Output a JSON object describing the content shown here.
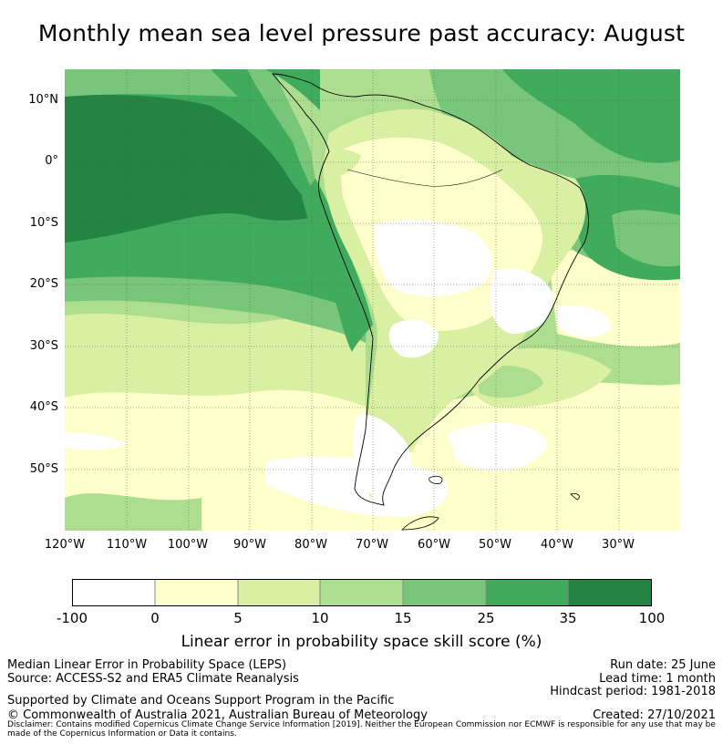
{
  "title": "Monthly mean sea level pressure past accuracy: August",
  "map": {
    "lat_labels": [
      "10°N",
      "0°",
      "10°S",
      "20°S",
      "30°S",
      "40°S",
      "50°S"
    ],
    "lon_labels": [
      "120°W",
      "110°W",
      "100°W",
      "90°W",
      "80°W",
      "70°W",
      "60°W",
      "50°W",
      "40°W",
      "30°W"
    ],
    "colors": {
      "white": "#ffffff",
      "cream": "#ffffcc",
      "light_yellow_green": "#d9f0a3",
      "light_green": "#addd8e",
      "mid_green": "#78c679",
      "green": "#41ab5d",
      "dark_green": "#238443"
    }
  },
  "colorbar": {
    "ticks": [
      "-100",
      "0",
      "5",
      "10",
      "15",
      "25",
      "35",
      "100"
    ],
    "colors": [
      "#ffffff",
      "#ffffcc",
      "#d9f0a3",
      "#addd8e",
      "#78c679",
      "#41ab5d",
      "#238443"
    ],
    "label": "Linear error in probability space skill score (%)"
  },
  "footer": {
    "left_line1": "Median Linear Error in Probability Space (LEPS)",
    "left_line2": "Source: ACCESS-S2 and ERA5 Climate Reanalysis",
    "left_line3": "Supported by Climate and Oceans Support Program in the Pacific",
    "left_line4": "© Commonwealth of Australia 2021, Australian Bureau of Meteorology",
    "right_line1": "Run date: 25 June",
    "right_line2": "Lead time: 1 month",
    "right_line3": "Hindcast period: 1981-2018",
    "right_line4": "Created: 27/10/2021",
    "disclaimer": "Disclaimer: Contains modified Copernicus Climate Change Service Information [2019]. Neither the European Commission nor ECMWF is responsible for any use that may be made of the Copernicus Information or Data it contains."
  }
}
